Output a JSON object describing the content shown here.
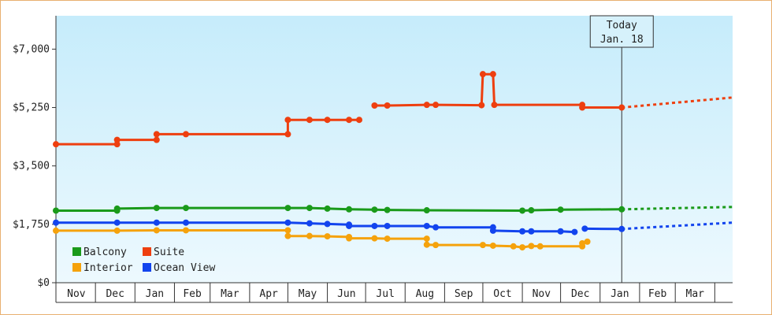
{
  "chart_data": {
    "type": "line",
    "title": "",
    "xlabel": "",
    "ylabel": "",
    "ylim": [
      0,
      8000
    ],
    "y_ticks": [
      {
        "value": 0,
        "label": "$0"
      },
      {
        "value": 1750,
        "label": "$1,750"
      },
      {
        "value": 3500,
        "label": "$3,500"
      },
      {
        "value": 5250,
        "label": "$5,250"
      },
      {
        "value": 7000,
        "label": "$7,000"
      }
    ],
    "x_domain": [
      "2021-10-31",
      "2023-04-15"
    ],
    "months": [
      {
        "label": "Nov",
        "start": "2021-11-01",
        "end": "2021-12-01"
      },
      {
        "label": "Dec",
        "start": "2021-12-01",
        "end": "2022-01-01"
      },
      {
        "label": "Jan",
        "start": "2022-01-01",
        "end": "2022-02-01"
      },
      {
        "label": "Feb",
        "start": "2022-02-01",
        "end": "2022-03-01"
      },
      {
        "label": "Mar",
        "start": "2022-03-01",
        "end": "2022-04-01"
      },
      {
        "label": "Apr",
        "start": "2022-04-01",
        "end": "2022-05-01"
      },
      {
        "label": "May",
        "start": "2022-05-01",
        "end": "2022-06-01"
      },
      {
        "label": "Jun",
        "start": "2022-06-01",
        "end": "2022-07-01"
      },
      {
        "label": "Jul",
        "start": "2022-07-01",
        "end": "2022-08-01"
      },
      {
        "label": "Aug",
        "start": "2022-08-01",
        "end": "2022-09-01"
      },
      {
        "label": "Sep",
        "start": "2022-09-01",
        "end": "2022-10-01"
      },
      {
        "label": "Oct",
        "start": "2022-10-01",
        "end": "2022-11-01"
      },
      {
        "label": "Nov",
        "start": "2022-11-01",
        "end": "2022-12-01"
      },
      {
        "label": "Dec",
        "start": "2022-12-01",
        "end": "2023-01-01"
      },
      {
        "label": "Jan",
        "start": "2023-01-01",
        "end": "2023-02-01"
      },
      {
        "label": "Feb",
        "start": "2023-02-01",
        "end": "2023-03-01"
      },
      {
        "label": "Mar",
        "start": "2023-03-01",
        "end": "2023-04-01"
      }
    ],
    "today": {
      "date": "2023-01-18",
      "line1": "Today",
      "line2": "Jan. 18"
    },
    "grid": false,
    "legend_position": "bottom-left",
    "series": [
      {
        "name": "Balcony",
        "color": "#1a9a1a",
        "projection_end": {
          "date": "2023-04-15",
          "value": 2270
        },
        "segments": [
          [
            {
              "date": "2021-10-31",
              "value": 2160,
              "marker": true
            },
            {
              "date": "2021-12-18",
              "value": 2160,
              "marker": true
            },
            {
              "date": "2021-12-18",
              "value": 2220,
              "marker": true
            },
            {
              "date": "2022-01-18",
              "value": 2240,
              "marker": true
            },
            {
              "date": "2022-01-18",
              "value": 2240
            },
            {
              "date": "2022-02-10",
              "value": 2240,
              "marker": true
            },
            {
              "date": "2022-05-01",
              "value": 2240,
              "marker": true
            },
            {
              "date": "2022-05-18",
              "value": 2240,
              "marker": true
            },
            {
              "date": "2022-06-01",
              "value": 2220,
              "marker": true
            },
            {
              "date": "2022-06-18",
              "value": 2200,
              "marker": true
            },
            {
              "date": "2022-07-08",
              "value": 2190,
              "marker": true
            },
            {
              "date": "2022-07-18",
              "value": 2180,
              "marker": true
            },
            {
              "date": "2022-08-18",
              "value": 2170,
              "marker": true
            },
            {
              "date": "2022-11-01",
              "value": 2160,
              "marker": true
            },
            {
              "date": "2022-11-08",
              "value": 2170,
              "marker": true
            },
            {
              "date": "2022-12-01",
              "value": 2190,
              "marker": true
            },
            {
              "date": "2023-01-18",
              "value": 2200,
              "marker": true
            }
          ]
        ]
      },
      {
        "name": "Suite",
        "color": "#ee3f0f",
        "projection_end": {
          "date": "2023-04-15",
          "value": 5550
        },
        "segments": [
          [
            {
              "date": "2021-10-31",
              "value": 4150,
              "marker": true
            },
            {
              "date": "2021-12-18",
              "value": 4150,
              "marker": true
            },
            {
              "date": "2021-12-18",
              "value": 4280,
              "marker": true
            },
            {
              "date": "2022-01-18",
              "value": 4280,
              "marker": true
            },
            {
              "date": "2022-01-18",
              "value": 4450,
              "marker": true
            },
            {
              "date": "2022-02-10",
              "value": 4450,
              "marker": true
            },
            {
              "date": "2022-05-01",
              "value": 4450,
              "marker": true
            },
            {
              "date": "2022-05-01",
              "value": 4880,
              "marker": true
            },
            {
              "date": "2022-05-18",
              "value": 4880,
              "marker": true
            },
            {
              "date": "2022-06-01",
              "value": 4880,
              "marker": true
            },
            {
              "date": "2022-06-18",
              "value": 4880,
              "marker": true
            },
            {
              "date": "2022-06-26",
              "value": 4880,
              "marker": true
            }
          ],
          [
            {
              "date": "2022-07-08",
              "value": 5310,
              "marker": true
            },
            {
              "date": "2022-07-18",
              "value": 5310,
              "marker": true
            },
            {
              "date": "2022-08-18",
              "value": 5330,
              "marker": true
            },
            {
              "date": "2022-08-25",
              "value": 5330,
              "marker": true
            },
            {
              "date": "2022-09-30",
              "value": 5320,
              "marker": true
            },
            {
              "date": "2022-10-01",
              "value": 6250,
              "marker": true
            },
            {
              "date": "2022-10-09",
              "value": 6250,
              "marker": true
            },
            {
              "date": "2022-10-10",
              "value": 5330,
              "marker": true
            },
            {
              "date": "2022-12-18",
              "value": 5330,
              "marker": true
            },
            {
              "date": "2022-12-18",
              "value": 5250,
              "marker": true
            },
            {
              "date": "2023-01-18",
              "value": 5250,
              "marker": true
            }
          ]
        ]
      },
      {
        "name": "Interior",
        "color": "#f5a20c",
        "projection_end": null,
        "segments": [
          [
            {
              "date": "2021-10-31",
              "value": 1560,
              "marker": true
            },
            {
              "date": "2021-12-18",
              "value": 1560,
              "marker": true
            },
            {
              "date": "2022-01-18",
              "value": 1570,
              "marker": true
            },
            {
              "date": "2022-02-10",
              "value": 1570,
              "marker": true
            },
            {
              "date": "2022-05-01",
              "value": 1570,
              "marker": true
            },
            {
              "date": "2022-05-01",
              "value": 1400,
              "marker": true
            },
            {
              "date": "2022-05-18",
              "value": 1400,
              "marker": true
            },
            {
              "date": "2022-06-01",
              "value": 1390,
              "marker": true
            },
            {
              "date": "2022-06-18",
              "value": 1370,
              "marker": true
            },
            {
              "date": "2022-06-18",
              "value": 1330,
              "marker": true
            },
            {
              "date": "2022-07-08",
              "value": 1330,
              "marker": true
            },
            {
              "date": "2022-07-18",
              "value": 1320,
              "marker": true
            },
            {
              "date": "2022-08-18",
              "value": 1320,
              "marker": true
            },
            {
              "date": "2022-08-18",
              "value": 1140,
              "marker": true
            },
            {
              "date": "2022-08-25",
              "value": 1130,
              "marker": true
            },
            {
              "date": "2022-10-01",
              "value": 1130,
              "marker": true
            },
            {
              "date": "2022-10-09",
              "value": 1110,
              "marker": true
            },
            {
              "date": "2022-10-25",
              "value": 1090,
              "marker": true
            },
            {
              "date": "2022-11-01",
              "value": 1060,
              "marker": true
            },
            {
              "date": "2022-11-08",
              "value": 1100,
              "marker": true
            },
            {
              "date": "2022-11-15",
              "value": 1090,
              "marker": true
            },
            {
              "date": "2022-12-18",
              "value": 1090,
              "marker": true
            },
            {
              "date": "2022-12-18",
              "value": 1180,
              "marker": true
            },
            {
              "date": "2022-12-22",
              "value": 1230,
              "marker": true
            }
          ]
        ]
      },
      {
        "name": "Ocean View",
        "color": "#1244ee",
        "projection_end": {
          "date": "2023-04-15",
          "value": 1800
        },
        "segments": [
          [
            {
              "date": "2021-10-31",
              "value": 1800,
              "marker": true
            },
            {
              "date": "2021-12-18",
              "value": 1800,
              "marker": true
            },
            {
              "date": "2022-01-18",
              "value": 1800,
              "marker": true
            },
            {
              "date": "2022-02-10",
              "value": 1800,
              "marker": true
            },
            {
              "date": "2022-05-01",
              "value": 1800,
              "marker": true
            },
            {
              "date": "2022-05-18",
              "value": 1780,
              "marker": true
            },
            {
              "date": "2022-06-01",
              "value": 1760,
              "marker": true
            },
            {
              "date": "2022-06-18",
              "value": 1740,
              "marker": true
            },
            {
              "date": "2022-06-18",
              "value": 1700,
              "marker": true
            },
            {
              "date": "2022-07-08",
              "value": 1700,
              "marker": true
            },
            {
              "date": "2022-07-18",
              "value": 1700,
              "marker": true
            },
            {
              "date": "2022-08-18",
              "value": 1700,
              "marker": true
            },
            {
              "date": "2022-08-25",
              "value": 1660,
              "marker": true
            },
            {
              "date": "2022-10-09",
              "value": 1660,
              "marker": true
            },
            {
              "date": "2022-10-09",
              "value": 1560,
              "marker": true
            },
            {
              "date": "2022-11-01",
              "value": 1540,
              "marker": true
            },
            {
              "date": "2022-11-08",
              "value": 1540,
              "marker": true
            },
            {
              "date": "2022-12-01",
              "value": 1540,
              "marker": true
            },
            {
              "date": "2022-12-12",
              "value": 1520,
              "marker": true
            }
          ],
          [
            {
              "date": "2022-12-20",
              "value": 1620,
              "marker": true
            },
            {
              "date": "2023-01-18",
              "value": 1610,
              "marker": true
            }
          ]
        ]
      }
    ]
  }
}
